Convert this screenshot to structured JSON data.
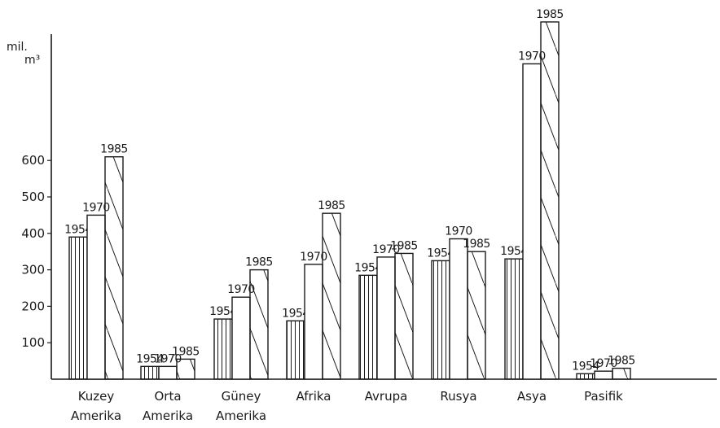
{
  "chart_data": {
    "type": "bar",
    "ylabel_lines": [
      "mil.",
      "m³"
    ],
    "ylim": [
      0,
      1000
    ],
    "yticks": [
      100,
      200,
      300,
      400,
      500,
      600
    ],
    "grid": false,
    "categories": [
      [
        "Kuzey",
        "Amerika"
      ],
      [
        "Orta",
        "Amerika"
      ],
      [
        "Güney",
        "Amerika"
      ],
      [
        "Afrika"
      ],
      [
        "Avrupa"
      ],
      [
        "Rusya"
      ],
      [
        "Asya"
      ],
      [
        "Pasifik"
      ]
    ],
    "series": [
      {
        "name": "1954",
        "pattern": "vertical",
        "values": [
          390,
          35,
          165,
          160,
          285,
          325,
          330,
          15
        ]
      },
      {
        "name": "1970",
        "pattern": "none",
        "values": [
          450,
          35,
          225,
          315,
          335,
          385,
          865,
          22
        ]
      },
      {
        "name": "1985",
        "pattern": "diagonal",
        "values": [
          610,
          55,
          300,
          455,
          345,
          350,
          980,
          30
        ]
      }
    ]
  },
  "colors": {
    "ink": "#1a1a1a",
    "paper": "#ffffff"
  }
}
